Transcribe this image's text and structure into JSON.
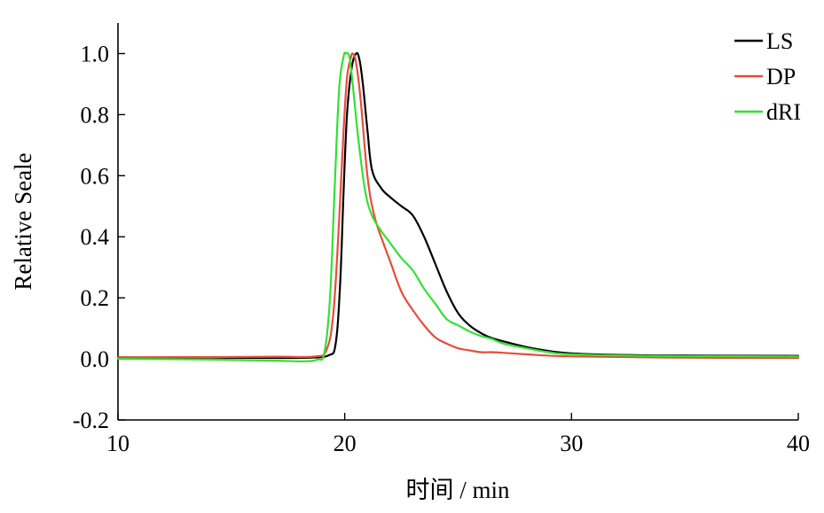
{
  "chart_data": {
    "type": "line",
    "title": "",
    "xlabel": "时间 / min",
    "ylabel": "Relative Seale",
    "xlim": [
      10,
      40
    ],
    "ylim": [
      -0.2,
      1.1
    ],
    "xticks": [
      10,
      20,
      30,
      40
    ],
    "xtick_labels": [
      "10",
      "20",
      "30",
      "40"
    ],
    "yticks": [
      -0.2,
      0.0,
      0.2,
      0.4,
      0.6,
      0.8,
      1.0
    ],
    "ytick_labels": [
      "-0.2",
      "0.0",
      "0.2",
      "0.4",
      "0.6",
      "0.8",
      "1.0"
    ],
    "grid": false,
    "legend": "top-right",
    "series": [
      {
        "name": "LS",
        "color": "#000000",
        "points": [
          [
            10,
            0.005
          ],
          [
            14,
            0.004
          ],
          [
            17,
            0.003
          ],
          [
            18.5,
            0.004
          ],
          [
            19.3,
            0.012
          ],
          [
            19.6,
            0.05
          ],
          [
            19.8,
            0.25
          ],
          [
            19.95,
            0.55
          ],
          [
            20.1,
            0.8
          ],
          [
            20.3,
            0.95
          ],
          [
            20.5,
            1.0
          ],
          [
            20.65,
            0.98
          ],
          [
            20.8,
            0.9
          ],
          [
            21.0,
            0.75
          ],
          [
            21.2,
            0.62
          ],
          [
            21.6,
            0.56
          ],
          [
            22.0,
            0.53
          ],
          [
            22.5,
            0.5
          ],
          [
            23.0,
            0.47
          ],
          [
            23.5,
            0.4
          ],
          [
            24.0,
            0.31
          ],
          [
            24.5,
            0.22
          ],
          [
            25.0,
            0.15
          ],
          [
            25.5,
            0.11
          ],
          [
            26.0,
            0.085
          ],
          [
            26.5,
            0.068
          ],
          [
            27.5,
            0.048
          ],
          [
            28.5,
            0.032
          ],
          [
            30.0,
            0.018
          ],
          [
            33.0,
            0.012
          ],
          [
            36.0,
            0.011
          ],
          [
            40.0,
            0.01
          ]
        ]
      },
      {
        "name": "DP",
        "color": "#e74c3c",
        "points": [
          [
            10,
            0.005
          ],
          [
            14,
            0.006
          ],
          [
            17,
            0.007
          ],
          [
            18.7,
            0.008
          ],
          [
            19.2,
            0.03
          ],
          [
            19.5,
            0.15
          ],
          [
            19.75,
            0.45
          ],
          [
            19.95,
            0.75
          ],
          [
            20.1,
            0.92
          ],
          [
            20.25,
            0.98
          ],
          [
            20.35,
            1.0
          ],
          [
            20.5,
            0.97
          ],
          [
            20.7,
            0.85
          ],
          [
            21.0,
            0.6
          ],
          [
            21.3,
            0.47
          ],
          [
            21.7,
            0.38
          ],
          [
            22.0,
            0.32
          ],
          [
            22.5,
            0.22
          ],
          [
            23.0,
            0.16
          ],
          [
            23.5,
            0.11
          ],
          [
            24.0,
            0.07
          ],
          [
            24.5,
            0.05
          ],
          [
            25.0,
            0.035
          ],
          [
            25.5,
            0.028
          ],
          [
            26.0,
            0.022
          ],
          [
            26.5,
            0.022
          ],
          [
            27.0,
            0.02
          ],
          [
            28.0,
            0.015
          ],
          [
            30.0,
            0.008
          ],
          [
            35.0,
            0.004
          ],
          [
            40.0,
            0.003
          ]
        ]
      },
      {
        "name": "dRI",
        "color": "#34e034",
        "points": [
          [
            10,
            0.0
          ],
          [
            14,
            -0.002
          ],
          [
            17,
            -0.006
          ],
          [
            18.2,
            -0.008
          ],
          [
            18.8,
            -0.002
          ],
          [
            19.1,
            0.02
          ],
          [
            19.35,
            0.2
          ],
          [
            19.55,
            0.55
          ],
          [
            19.75,
            0.88
          ],
          [
            19.95,
            0.99
          ],
          [
            20.05,
            1.0
          ],
          [
            20.2,
            0.99
          ],
          [
            20.35,
            0.9
          ],
          [
            20.6,
            0.72
          ],
          [
            20.9,
            0.55
          ],
          [
            21.2,
            0.47
          ],
          [
            21.6,
            0.42
          ],
          [
            22.0,
            0.38
          ],
          [
            22.5,
            0.33
          ],
          [
            23.0,
            0.29
          ],
          [
            23.5,
            0.23
          ],
          [
            24.0,
            0.18
          ],
          [
            24.5,
            0.13
          ],
          [
            25.0,
            0.11
          ],
          [
            25.5,
            0.09
          ],
          [
            26.0,
            0.075
          ],
          [
            26.5,
            0.065
          ],
          [
            27.0,
            0.05
          ],
          [
            28.0,
            0.035
          ],
          [
            29.0,
            0.022
          ],
          [
            30.0,
            0.015
          ],
          [
            33.0,
            0.01
          ],
          [
            36.0,
            0.009
          ],
          [
            40.0,
            0.008
          ]
        ]
      }
    ]
  }
}
